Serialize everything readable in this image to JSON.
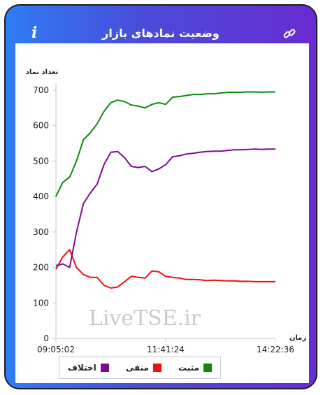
{
  "header": {
    "title": "وضعیت نمادهای بازار",
    "info_icon": "info-icon",
    "link_icon": "link-icon"
  },
  "watermark": "LiveTSE.ir",
  "colors": {
    "positive": "#0a8a12",
    "negative": "#ee1111",
    "difference": "#7a0f8c"
  },
  "chart_data": {
    "type": "line",
    "ylabel": "تعداد نماد",
    "xlabel": "زمان",
    "ylim": [
      0,
      700
    ],
    "yticks": [
      0,
      100,
      200,
      300,
      400,
      500,
      600,
      700
    ],
    "xticks": [
      "09:05:02",
      "11:41:24",
      "14:22:36"
    ],
    "x": [
      "09:05",
      "09:10",
      "09:20",
      "09:30",
      "09:40",
      "09:50",
      "10:00",
      "10:10",
      "10:20",
      "10:30",
      "10:40",
      "10:50",
      "11:00",
      "11:10",
      "11:20",
      "11:30",
      "11:40",
      "11:50",
      "12:00",
      "12:10",
      "12:20",
      "12:30",
      "12:40",
      "12:50",
      "13:00",
      "13:10",
      "13:20",
      "13:30",
      "13:40",
      "13:50",
      "14:00",
      "14:10",
      "14:22"
    ],
    "series": [
      {
        "name": "مثبت",
        "values": [
          400,
          440,
          455,
          500,
          560,
          580,
          605,
          640,
          665,
          672,
          668,
          658,
          655,
          650,
          660,
          665,
          660,
          680,
          682,
          685,
          688,
          688,
          690,
          690,
          692,
          694,
          694,
          694,
          695,
          695,
          694,
          695,
          695
        ]
      },
      {
        "name": "منفی",
        "values": [
          195,
          230,
          250,
          200,
          180,
          172,
          172,
          150,
          142,
          145,
          160,
          175,
          172,
          170,
          190,
          188,
          175,
          172,
          170,
          166,
          166,
          165,
          163,
          164,
          163,
          162,
          162,
          161,
          161,
          160,
          160,
          160,
          160
        ]
      },
      {
        "name": "اختلاف",
        "values": [
          205,
          210,
          200,
          300,
          380,
          410,
          435,
          490,
          525,
          527,
          510,
          485,
          482,
          485,
          470,
          478,
          490,
          512,
          515,
          520,
          522,
          525,
          527,
          528,
          528,
          530,
          532,
          532,
          533,
          534,
          533,
          534,
          534
        ]
      }
    ],
    "grid": false,
    "legend": "bottom"
  }
}
